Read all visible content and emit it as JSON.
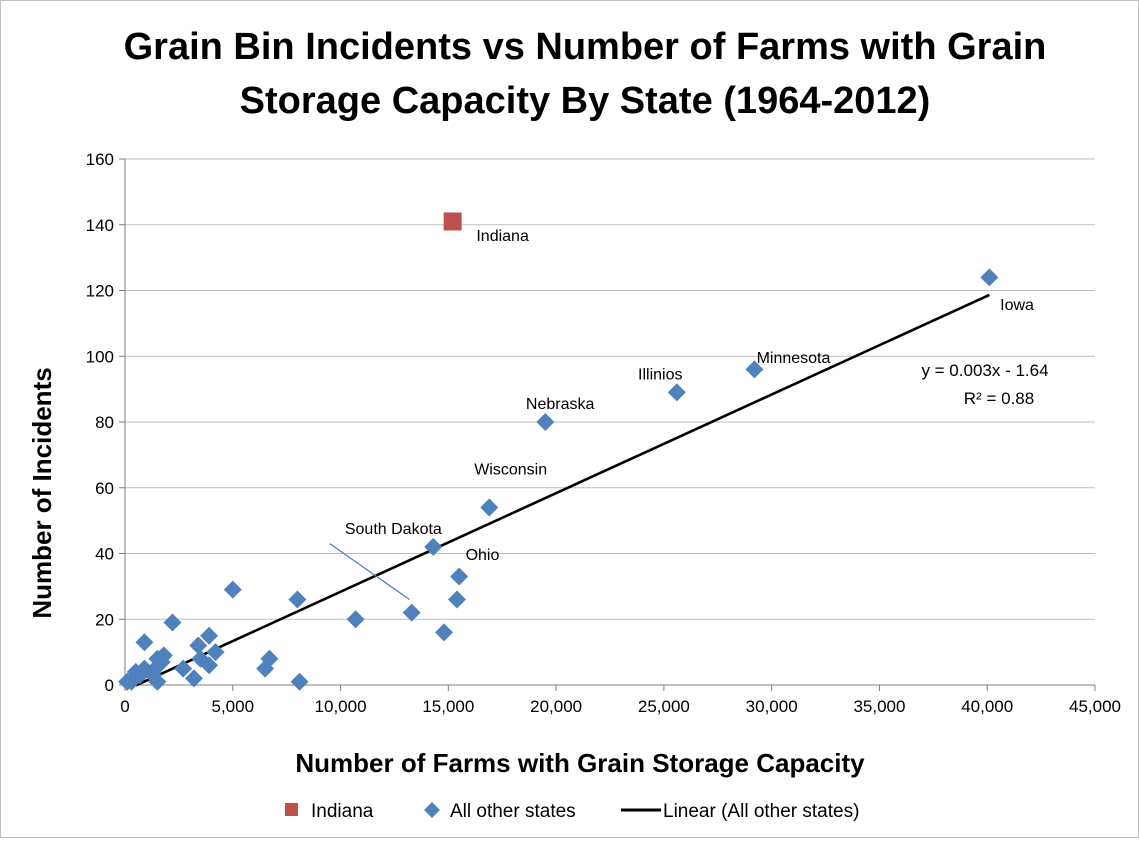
{
  "chart_data": {
    "type": "scatter",
    "title_lines": [
      "Grain Bin Incidents vs Number of Farms with Grain",
      "Storage Capacity By State (1964-2012)"
    ],
    "xlabel": "Number of Farms with Grain Storage Capacity",
    "ylabel": "Number of Incidents",
    "xlim": [
      0,
      45000
    ],
    "ylim": [
      0,
      160
    ],
    "x_ticks": [
      0,
      5000,
      10000,
      15000,
      20000,
      25000,
      30000,
      35000,
      40000,
      45000
    ],
    "x_tick_labels": [
      "0",
      "5,000",
      "10,000",
      "15,000",
      "20,000",
      "25,000",
      "30,000",
      "35,000",
      "40,000",
      "45,000"
    ],
    "y_ticks": [
      0,
      20,
      40,
      60,
      80,
      100,
      120,
      140,
      160
    ],
    "y_tick_labels": [
      "0",
      "20",
      "40",
      "60",
      "80",
      "100",
      "120",
      "140",
      "160"
    ],
    "grid": "horizontal",
    "legend_position": "bottom",
    "series": [
      {
        "name": "Indiana",
        "marker": "square",
        "color": "#c0504d",
        "points": [
          {
            "x": 15200,
            "y": 141
          }
        ]
      },
      {
        "name": "All other states",
        "marker": "diamond",
        "color": "#4f81bd",
        "points": [
          {
            "x": 40100,
            "y": 124
          },
          {
            "x": 29200,
            "y": 96
          },
          {
            "x": 25600,
            "y": 89
          },
          {
            "x": 19500,
            "y": 80
          },
          {
            "x": 16900,
            "y": 54
          },
          {
            "x": 14300,
            "y": 42
          },
          {
            "x": 15500,
            "y": 33
          },
          {
            "x": 15400,
            "y": 26
          },
          {
            "x": 13300,
            "y": 22
          },
          {
            "x": 14800,
            "y": 16
          },
          {
            "x": 10700,
            "y": 20
          },
          {
            "x": 8000,
            "y": 26
          },
          {
            "x": 8100,
            "y": 1
          },
          {
            "x": 6700,
            "y": 8
          },
          {
            "x": 6500,
            "y": 5
          },
          {
            "x": 5000,
            "y": 29
          },
          {
            "x": 4200,
            "y": 10
          },
          {
            "x": 3900,
            "y": 15
          },
          {
            "x": 3900,
            "y": 6
          },
          {
            "x": 3400,
            "y": 12
          },
          {
            "x": 3500,
            "y": 8
          },
          {
            "x": 3200,
            "y": 2
          },
          {
            "x": 2700,
            "y": 5
          },
          {
            "x": 2200,
            "y": 19
          },
          {
            "x": 1800,
            "y": 9
          },
          {
            "x": 1700,
            "y": 7
          },
          {
            "x": 1500,
            "y": 8
          },
          {
            "x": 1400,
            "y": 5
          },
          {
            "x": 1300,
            "y": 3
          },
          {
            "x": 1500,
            "y": 1
          },
          {
            "x": 900,
            "y": 13
          },
          {
            "x": 900,
            "y": 5
          },
          {
            "x": 700,
            "y": 3
          },
          {
            "x": 500,
            "y": 4
          },
          {
            "x": 400,
            "y": 2
          },
          {
            "x": 300,
            "y": 1
          },
          {
            "x": 100,
            "y": 1
          }
        ]
      }
    ],
    "trendline": {
      "name": "Linear (All other states)",
      "color": "#000000",
      "slope": 0.003,
      "intercept": -1.64,
      "x_range": [
        500,
        40100
      ],
      "equation": "y = 0.003x - 1.64",
      "r_squared": "R² = 0.88"
    },
    "annotations": [
      {
        "text": "Indiana",
        "x": 16300,
        "y": 135
      },
      {
        "text": "Iowa",
        "x": 40600,
        "y": 114
      },
      {
        "text": "Minnesota",
        "x": 29300,
        "y": 98
      },
      {
        "text": "Illinios",
        "x": 23800,
        "y": 93
      },
      {
        "text": "Nebraska",
        "x": 18600,
        "y": 84
      },
      {
        "text": "Wisconsin",
        "x": 16200,
        "y": 64
      },
      {
        "text": "Ohio",
        "x": 15800,
        "y": 38
      },
      {
        "text": "South Dakota",
        "x": 10200,
        "y": 46
      }
    ],
    "south_dakota_leader": {
      "x1": 9500,
      "y1": 43,
      "x2": 13200,
      "y2": 26
    }
  }
}
